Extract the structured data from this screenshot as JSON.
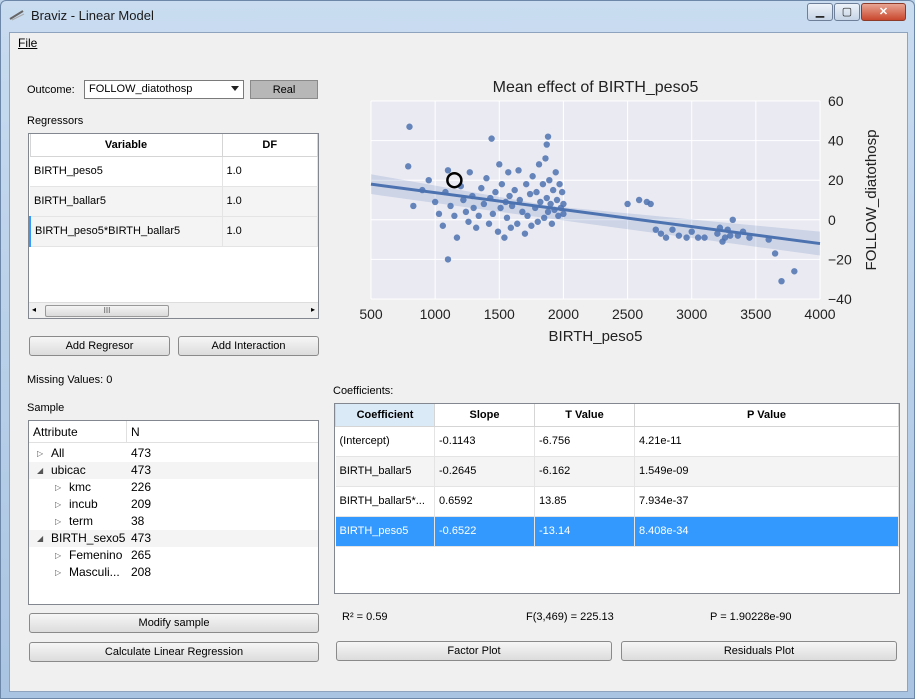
{
  "window": {
    "title": "Braviz - Linear Model"
  },
  "menu": {
    "file": "File"
  },
  "outcome": {
    "label": "Outcome:",
    "value": "FOLLOW_diatothosp",
    "type_button": "Real"
  },
  "regressors": {
    "label": "Regressors",
    "headers": [
      "Variable",
      "DF"
    ],
    "rows": [
      {
        "variable": "BIRTH_peso5",
        "df": "1.0"
      },
      {
        "variable": "BIRTH_ballar5",
        "df": "1.0"
      },
      {
        "variable": "BIRTH_peso5*BIRTH_ballar5",
        "df": "1.0"
      }
    ],
    "scroll_thumb": "III"
  },
  "buttons": {
    "add_regressor": "Add Regresor",
    "add_interaction": "Add Interaction",
    "modify_sample": "Modify sample",
    "calculate": "Calculate Linear Regression",
    "factor_plot": "Factor Plot",
    "residuals_plot": "Residuals Plot"
  },
  "missing": "Missing Values: 0",
  "sample": {
    "label": "Sample",
    "headers": [
      "Attribute",
      "N"
    ],
    "rows": [
      {
        "name": "All",
        "n": "473",
        "expander": "▷",
        "level": 0
      },
      {
        "name": "ubicac",
        "n": "473",
        "expander": "◢",
        "level": 0
      },
      {
        "name": "kmc",
        "n": "226",
        "expander": "▷",
        "level": 1
      },
      {
        "name": "incub",
        "n": "209",
        "expander": "▷",
        "level": 1
      },
      {
        "name": "term",
        "n": "38",
        "expander": "▷",
        "level": 1
      },
      {
        "name": "BIRTH_sexo5",
        "n": "473",
        "expander": "◢",
        "level": 0
      },
      {
        "name": "Femenino",
        "n": "265",
        "expander": "▷",
        "level": 1
      },
      {
        "name": "Masculi...",
        "n": "208",
        "expander": "▷",
        "level": 1
      }
    ]
  },
  "coefficients": {
    "label": "Coefficients:",
    "headers": [
      "Coefficient",
      "Slope",
      "T Value",
      "P Value"
    ],
    "rows": [
      {
        "coef": "(Intercept)",
        "slope": "-0.1143",
        "t": "-6.756",
        "p": "4.21e-11"
      },
      {
        "coef": "BIRTH_ballar5",
        "slope": "-0.2645",
        "t": "-6.162",
        "p": "1.549e-09"
      },
      {
        "coef": "BIRTH_ballar5*...",
        "slope": "0.6592",
        "t": "13.85",
        "p": "7.934e-37"
      },
      {
        "coef": "BIRTH_peso5",
        "slope": "-0.6522",
        "t": "-13.14",
        "p": "8.408e-34"
      }
    ],
    "selected_row": 3
  },
  "stats": {
    "r2": "R² = 0.59",
    "f": "F(3,469) = 225.13",
    "p": "P = 1.90228e-90"
  },
  "colors": {
    "accent": "#3399ff",
    "series": "#4c72b0",
    "plot_bg": "#eaeaf2"
  },
  "chart_data": {
    "type": "scatter",
    "title": "Mean effect of BIRTH_peso5",
    "xlabel": "BIRTH_peso5",
    "ylabel": "FOLLOW_diatothosp",
    "xlim": [
      500,
      4000
    ],
    "ylim": [
      -40,
      60
    ],
    "xticks": [
      "500",
      "1000",
      "1500",
      "2000",
      "2500",
      "3000",
      "3500",
      "4000"
    ],
    "yticks": [
      "60",
      "40",
      "20",
      "0",
      "−20",
      "−40"
    ],
    "regression_line": {
      "x": [
        500,
        4000
      ],
      "y": [
        18,
        -12
      ]
    },
    "highlight_point": {
      "x": 1150,
      "y": 20
    },
    "points": [
      [
        800,
        47
      ],
      [
        790,
        27
      ],
      [
        830,
        7
      ],
      [
        900,
        15
      ],
      [
        950,
        20
      ],
      [
        1000,
        9
      ],
      [
        1030,
        3
      ],
      [
        1060,
        -3
      ],
      [
        1080,
        14
      ],
      [
        1100,
        25
      ],
      [
        1120,
        7
      ],
      [
        1150,
        2
      ],
      [
        1170,
        -9
      ],
      [
        1200,
        17
      ],
      [
        1220,
        10
      ],
      [
        1240,
        4
      ],
      [
        1260,
        -1
      ],
      [
        1270,
        24
      ],
      [
        1290,
        12
      ],
      [
        1300,
        6
      ],
      [
        1320,
        -4
      ],
      [
        1340,
        2
      ],
      [
        1360,
        16
      ],
      [
        1380,
        8
      ],
      [
        1400,
        21
      ],
      [
        1420,
        -2
      ],
      [
        1430,
        11
      ],
      [
        1450,
        3
      ],
      [
        1470,
        14
      ],
      [
        1490,
        -6
      ],
      [
        1500,
        28
      ],
      [
        1510,
        6
      ],
      [
        1520,
        18
      ],
      [
        1540,
        -9
      ],
      [
        1550,
        9
      ],
      [
        1560,
        1
      ],
      [
        1570,
        24
      ],
      [
        1580,
        12
      ],
      [
        1590,
        -4
      ],
      [
        1600,
        7
      ],
      [
        1620,
        15
      ],
      [
        1640,
        -2
      ],
      [
        1650,
        25
      ],
      [
        1660,
        10
      ],
      [
        1680,
        4
      ],
      [
        1700,
        -7
      ],
      [
        1710,
        18
      ],
      [
        1720,
        2
      ],
      [
        1740,
        13
      ],
      [
        1750,
        -3
      ],
      [
        1760,
        22
      ],
      [
        1780,
        6
      ],
      [
        1790,
        14
      ],
      [
        1800,
        -1
      ],
      [
        1810,
        28
      ],
      [
        1820,
        9
      ],
      [
        1840,
        18
      ],
      [
        1850,
        1
      ],
      [
        1860,
        31
      ],
      [
        1870,
        11
      ],
      [
        1880,
        4
      ],
      [
        1890,
        20
      ],
      [
        1900,
        8
      ],
      [
        1910,
        -2
      ],
      [
        1920,
        15
      ],
      [
        1930,
        5
      ],
      [
        1940,
        24
      ],
      [
        1950,
        10
      ],
      [
        1960,
        2
      ],
      [
        1970,
        18
      ],
      [
        1980,
        6
      ],
      [
        1990,
        14
      ],
      [
        2000,
        8
      ],
      [
        2000,
        3
      ],
      [
        1100,
        -20
      ],
      [
        1440,
        41
      ],
      [
        1880,
        42
      ],
      [
        1870,
        38
      ],
      [
        2500,
        8
      ],
      [
        2590,
        10
      ],
      [
        2650,
        9
      ],
      [
        2680,
        8
      ],
      [
        2720,
        -5
      ],
      [
        2760,
        -7
      ],
      [
        2800,
        -9
      ],
      [
        2850,
        -5
      ],
      [
        2900,
        -8
      ],
      [
        2960,
        -9
      ],
      [
        3000,
        -6
      ],
      [
        3050,
        -9
      ],
      [
        3100,
        -9
      ],
      [
        3200,
        -7
      ],
      [
        3220,
        -4
      ],
      [
        3240,
        -11
      ],
      [
        3260,
        -9
      ],
      [
        3280,
        -5
      ],
      [
        3300,
        -8
      ],
      [
        3320,
        0
      ],
      [
        3360,
        -8
      ],
      [
        3400,
        -6
      ],
      [
        3450,
        -9
      ],
      [
        3600,
        -10
      ],
      [
        3650,
        -17
      ],
      [
        3700,
        -31
      ],
      [
        3800,
        -26
      ]
    ]
  }
}
